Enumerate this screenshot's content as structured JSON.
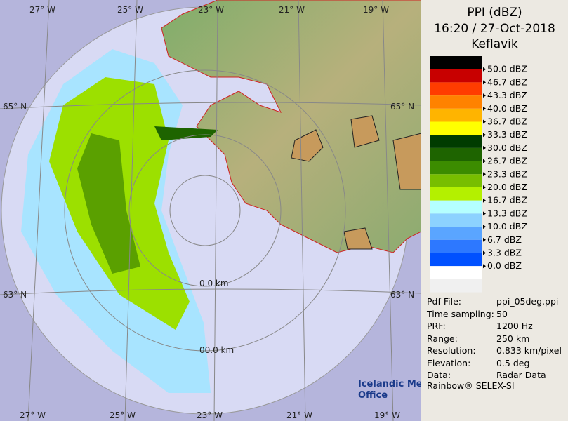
{
  "header": {
    "title": "PPI (dBZ)",
    "time": "16:20 / 27-Oct-2018",
    "station": "Keflavik"
  },
  "legend": [
    {
      "label": "50.0 dBZ",
      "color": "#000000"
    },
    {
      "label": "46.7 dBZ",
      "color": "#c80000"
    },
    {
      "label": "43.3 dBZ",
      "color": "#ff3c00"
    },
    {
      "label": "40.0 dBZ",
      "color": "#ff8200"
    },
    {
      "label": "36.7 dBZ",
      "color": "#ffb400"
    },
    {
      "label": "33.3 dBZ",
      "color": "#ffff00"
    },
    {
      "label": "30.0 dBZ",
      "color": "#003c00"
    },
    {
      "label": "26.7 dBZ",
      "color": "#1e6400"
    },
    {
      "label": "23.3 dBZ",
      "color": "#3c8c00"
    },
    {
      "label": "20.0 dBZ",
      "color": "#78be00"
    },
    {
      "label": "16.7 dBZ",
      "color": "#b4f000"
    },
    {
      "label": "13.3 dBZ",
      "color": "#b4ffff"
    },
    {
      "label": "10.0 dBZ",
      "color": "#8cd2ff"
    },
    {
      "label": "6.7 dBZ",
      "color": "#5aa5ff"
    },
    {
      "label": "3.3 dBZ",
      "color": "#2d78ff"
    },
    {
      "label": "0.0 dBZ",
      "color": "#0050ff"
    }
  ],
  "info": [
    [
      "Pdf File:",
      "ppi_05deg.ppi"
    ],
    [
      "Time sampling:",
      "50"
    ],
    [
      "PRF:",
      "1200 Hz"
    ],
    [
      "Range:",
      "250 km"
    ],
    [
      "Resolution:",
      "0.833 km/pixel"
    ],
    [
      "Elevation:",
      "0.5 deg"
    ],
    [
      "Data:",
      "Radar Data"
    ]
  ],
  "footer": "Rainbow® SELEX-SI",
  "logo": [
    "Icelandic Met",
    "Office"
  ],
  "map": {
    "lon_top": [
      "27° W",
      "25° W",
      "23° W",
      "21° W",
      "19° W"
    ],
    "lon_bottom": [
      "27° W",
      "25° W",
      "23° W",
      "21° W",
      "19° W"
    ],
    "lat_left": [
      "65° N",
      "63° N"
    ],
    "lat_right": [
      "65° N",
      "63° N"
    ],
    "ranges": [
      "0.0 km",
      "00.0 km"
    ]
  }
}
